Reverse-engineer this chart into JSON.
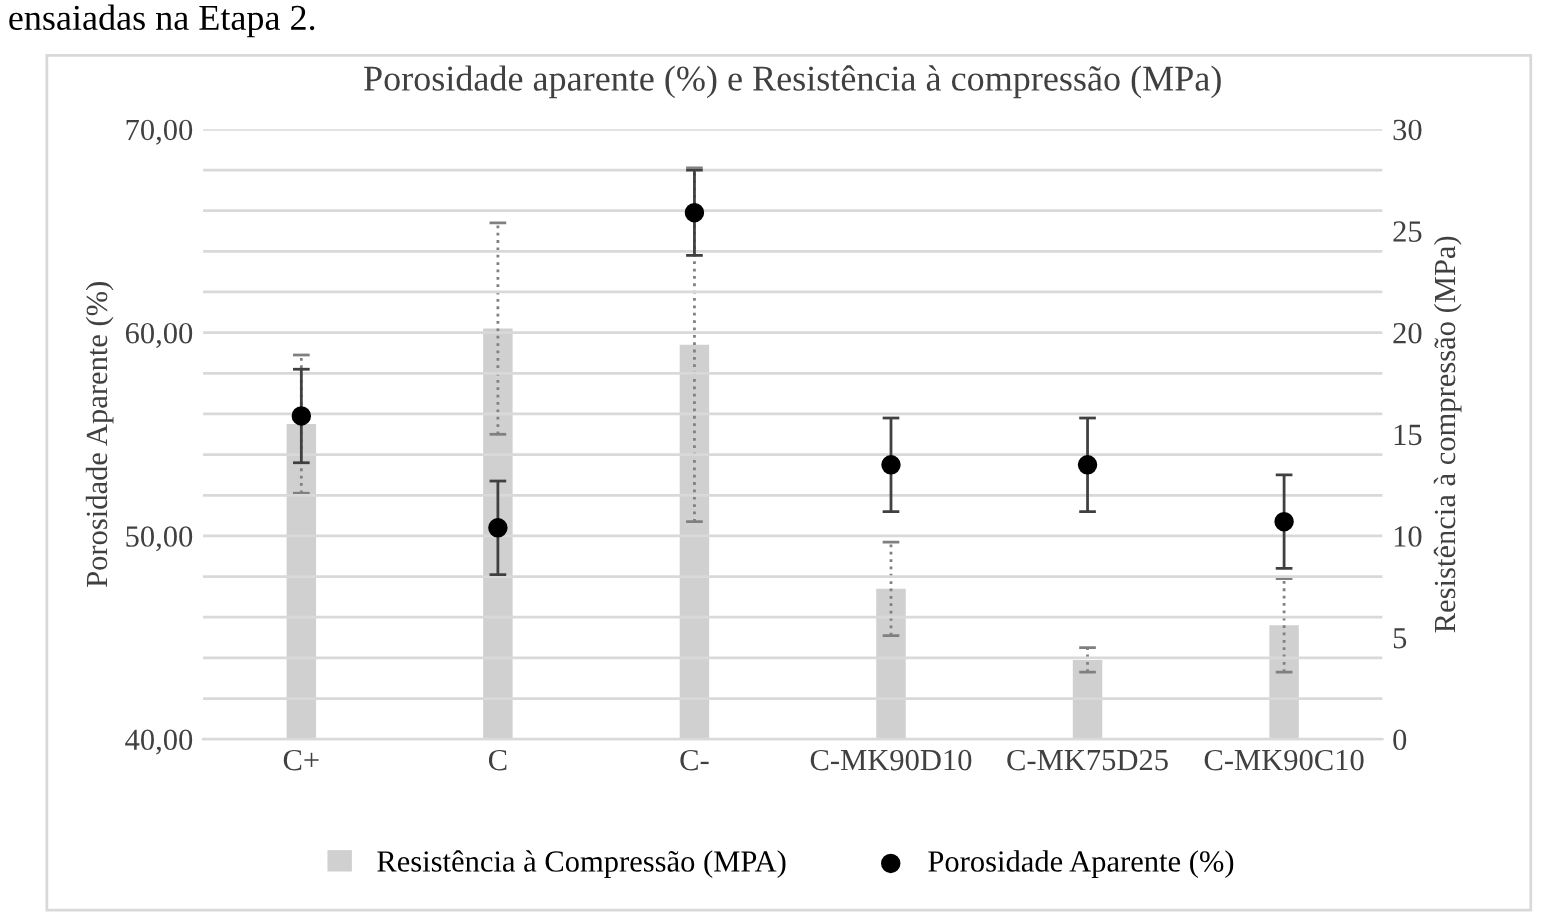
{
  "chart_data": {
    "type": "bar",
    "title": "Porosidade aparente (%) e Resistência à compressão (MPa)",
    "ylabel": "Porosidade Aparente (%)",
    "y2label": "Resistência à compressão (MPa)",
    "annotations": [
      "ensaiadas na Etapa 2."
    ],
    "categories": [
      "C+",
      "C",
      "C-",
      "C-MK90D10",
      "C-MK75D25",
      "C-MK90C10"
    ],
    "series": [
      {
        "name": "Resistência à Compressão (MPA)",
        "axis": "y2",
        "color": "#d0d0d0",
        "line_style": "dotted",
        "values": [
          15.5,
          20.2,
          19.4,
          7.4,
          3.9,
          5.6
        ],
        "errors": [
          3.4,
          5.2,
          8.7,
          2.3,
          0.6,
          2.3
        ]
      },
      {
        "name": "Porosidade Aparente (%)",
        "type": "scatter",
        "color": "#000000",
        "marker": "circle",
        "values": [
          55.9,
          50.4,
          65.9,
          53.5,
          53.5,
          50.7
        ],
        "errors": [
          2.3,
          2.3,
          2.1,
          2.3,
          2.3,
          2.3
        ]
      }
    ],
    "ylim": [
      40,
      70
    ],
    "yticks": [
      {
        "value": 40,
        "label": "40,00"
      },
      {
        "value": 42,
        "label": null
      },
      {
        "value": 44,
        "label": null
      },
      {
        "value": 46,
        "label": null
      },
      {
        "value": 48,
        "label": null
      },
      {
        "value": 50,
        "label": "50,00"
      },
      {
        "value": 52,
        "label": null
      },
      {
        "value": 54,
        "label": null
      },
      {
        "value": 56,
        "label": null
      },
      {
        "value": 58,
        "label": null
      },
      {
        "value": 60,
        "label": "60,00"
      },
      {
        "value": 62,
        "label": null
      },
      {
        "value": 64,
        "label": null
      },
      {
        "value": 66,
        "label": null
      },
      {
        "value": 68,
        "label": null
      },
      {
        "value": 70,
        "label": "70,00"
      }
    ],
    "y2lim": [
      0,
      30
    ],
    "y2ticks": [
      0,
      5,
      10,
      15,
      20,
      25,
      30
    ],
    "grid": "y",
    "legend": "bottom"
  }
}
